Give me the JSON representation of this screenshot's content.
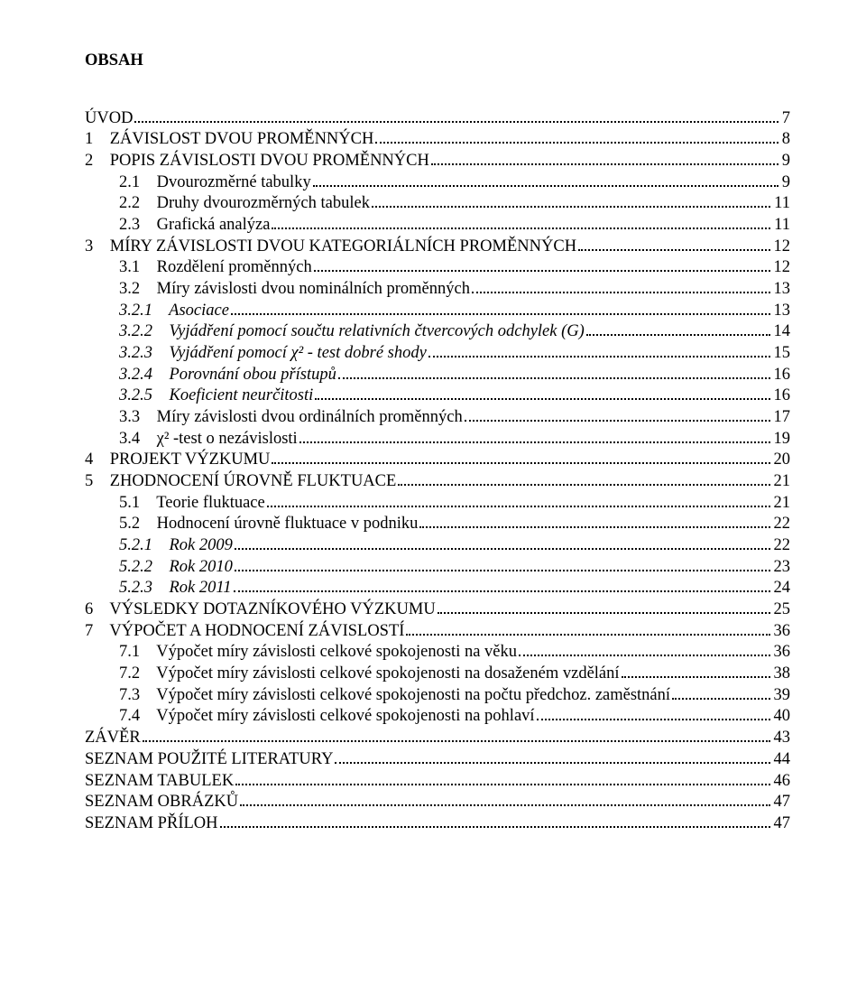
{
  "title": "OBSAH",
  "entries": [
    {
      "label": "ÚVOD",
      "page": "7",
      "indent": 0,
      "italic": false
    },
    {
      "label": "1    ZÁVISLOST DVOU PROMĚNNÝCH",
      "page": "8",
      "indent": 0,
      "italic": false
    },
    {
      "label": "2    POPIS ZÁVISLOSTI DVOU PROMĚNNÝCH",
      "page": "9",
      "indent": 0,
      "italic": false
    },
    {
      "label": "2.1    Dvourozměrné tabulky",
      "page": "9",
      "indent": 1,
      "italic": false
    },
    {
      "label": "2.2    Druhy dvourozměrných tabulek",
      "page": "11",
      "indent": 1,
      "italic": false
    },
    {
      "label": "2.3    Grafická analýza",
      "page": "11",
      "indent": 1,
      "italic": false
    },
    {
      "label": "3    MÍRY ZÁVISLOSTI DVOU KATEGORIÁLNÍCH PROMĚNNÝCH",
      "page": "12",
      "indent": 0,
      "italic": false
    },
    {
      "label": "3.1    Rozdělení proměnných",
      "page": "12",
      "indent": 1,
      "italic": false
    },
    {
      "label": "3.2    Míry závislosti dvou nominálních proměnných",
      "page": "13",
      "indent": 1,
      "italic": false
    },
    {
      "label": "3.2.1    Asociace",
      "page": "13",
      "indent": 2,
      "italic": true
    },
    {
      "label": "3.2.2    Vyjádření pomocí součtu relativních čtvercových odchylek (G)",
      "page": "14",
      "indent": 2,
      "italic": true
    },
    {
      "label": "3.2.3    Vyjádření pomocí χ² - test dobré shody",
      "page": "15",
      "indent": 2,
      "italic": true
    },
    {
      "label": "3.2.4    Porovnání obou přístupů",
      "page": "16",
      "indent": 2,
      "italic": true
    },
    {
      "label": "3.2.5    Koeficient neurčitosti",
      "page": "16",
      "indent": 2,
      "italic": true
    },
    {
      "label": "3.3    Míry závislosti dvou ordinálních proměnných",
      "page": "17",
      "indent": 1,
      "italic": false
    },
    {
      "label": "3.4    χ² -test o nezávislosti",
      "page": "19",
      "indent": 1,
      "italic": false
    },
    {
      "label": "4    PROJEKT VÝZKUMU",
      "page": "20",
      "indent": 0,
      "italic": false
    },
    {
      "label": "5    ZHODNOCENÍ ÚROVNĚ FLUKTUACE",
      "page": "21",
      "indent": 0,
      "italic": false
    },
    {
      "label": "5.1    Teorie fluktuace",
      "page": "21",
      "indent": 1,
      "italic": false
    },
    {
      "label": "5.2    Hodnocení úrovně fluktuace v podniku",
      "page": "22",
      "indent": 1,
      "italic": false
    },
    {
      "label": "5.2.1    Rok 2009",
      "page": "22",
      "indent": 2,
      "italic": true
    },
    {
      "label": "5.2.2    Rok 2010",
      "page": "23",
      "indent": 2,
      "italic": true
    },
    {
      "label": "5.2.3    Rok 2011",
      "page": "24",
      "indent": 2,
      "italic": true
    },
    {
      "label": "6    VÝSLEDKY DOTAZNÍKOVÉHO VÝZKUMU",
      "page": "25",
      "indent": 0,
      "italic": false
    },
    {
      "label": "7    VÝPOČET A HODNOCENÍ ZÁVISLOSTÍ",
      "page": "36",
      "indent": 0,
      "italic": false
    },
    {
      "label": "7.1    Výpočet míry závislosti celkové spokojenosti na věku",
      "page": "36",
      "indent": 1,
      "italic": false
    },
    {
      "label": "7.2    Výpočet míry závislosti celkové spokojenosti na dosaženém vzdělání",
      "page": "38",
      "indent": 1,
      "italic": false
    },
    {
      "label": "7.3    Výpočet míry závislosti celkové spokojenosti na počtu předchoz. zaměstnání",
      "page": "39",
      "indent": 1,
      "italic": false
    },
    {
      "label": "7.4    Výpočet míry závislosti celkové spokojenosti na pohlaví",
      "page": "40",
      "indent": 1,
      "italic": false
    },
    {
      "label": "ZÁVĚR",
      "page": "43",
      "indent": 0,
      "italic": false
    },
    {
      "label": "SEZNAM POUŽITÉ LITERATURY",
      "page": "44",
      "indent": 0,
      "italic": false
    },
    {
      "label": "SEZNAM TABULEK",
      "page": "46",
      "indent": 0,
      "italic": false
    },
    {
      "label": "SEZNAM OBRÁZKŮ",
      "page": "47",
      "indent": 0,
      "italic": false
    },
    {
      "label": "SEZNAM PŘÍLOH",
      "page": "47",
      "indent": 0,
      "italic": false
    }
  ]
}
